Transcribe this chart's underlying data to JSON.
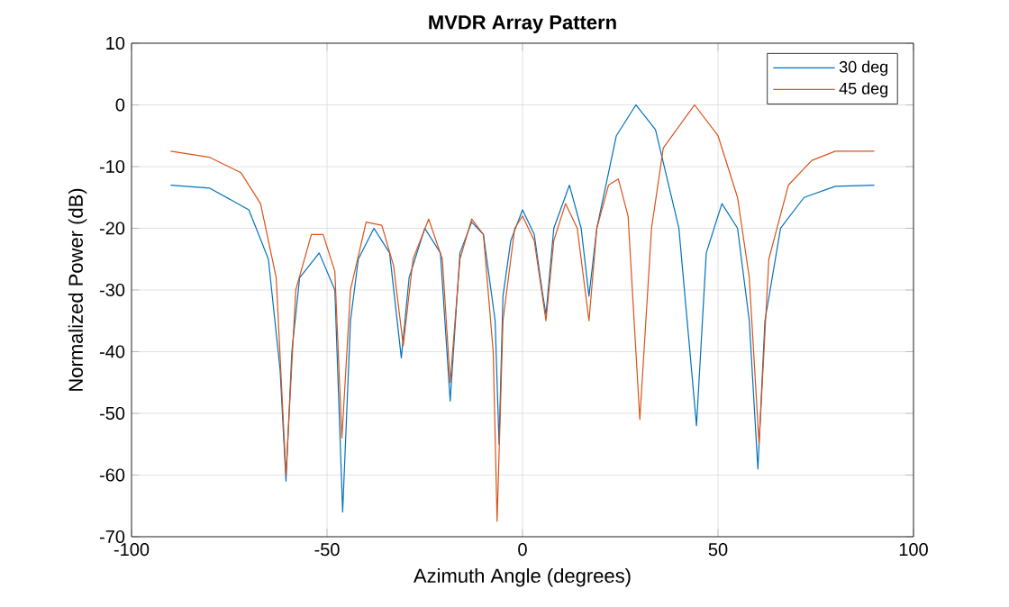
{
  "chart_data": {
    "type": "line",
    "title": "MVDR Array Pattern",
    "xlabel": "Azimuth Angle (degrees)",
    "ylabel": "Normalized Power (dB)",
    "xlim": [
      -100,
      100
    ],
    "ylim": [
      -70,
      10
    ],
    "xticks": [
      -100,
      -50,
      0,
      50,
      100
    ],
    "yticks": [
      -70,
      -60,
      -50,
      -40,
      -30,
      -20,
      -10,
      0,
      10
    ],
    "grid": true,
    "legend": "top right",
    "series": [
      {
        "name": "30 deg",
        "color": "#0072bd",
        "x": [
          -90,
          -80,
          -70,
          -65,
          -62,
          -60.5,
          -59,
          -57,
          -52,
          -48,
          -46,
          -44,
          -42,
          -38,
          -34,
          -31,
          -29,
          -25,
          -21,
          -18.5,
          -16,
          -13,
          -10,
          -7,
          -6,
          -5,
          -3,
          0,
          3,
          5,
          6,
          8,
          12,
          15,
          17,
          19,
          24,
          29,
          34,
          40,
          44.5,
          47,
          51,
          55,
          58,
          60.2,
          62,
          66,
          72,
          80,
          90
        ],
        "values": [
          -13,
          -13.5,
          -17,
          -25,
          -43,
          -61,
          -40,
          -28,
          -24,
          -30,
          -66,
          -35,
          -25,
          -20,
          -24,
          -41,
          -28,
          -20,
          -24,
          -48,
          -24,
          -19,
          -21,
          -35,
          -55,
          -31,
          -22,
          -17,
          -21,
          -30,
          -34,
          -20,
          -13,
          -20,
          -31,
          -20,
          -5,
          0,
          -4,
          -20,
          -52,
          -24,
          -16,
          -20,
          -35,
          -59,
          -35,
          -20,
          -15,
          -13.2,
          -13
        ]
      },
      {
        "name": "45 deg",
        "color": "#d95319",
        "x": [
          -90,
          -80,
          -72,
          -67,
          -63,
          -60.5,
          -58,
          -54,
          -51,
          -48,
          -46.2,
          -44,
          -40,
          -36,
          -33,
          -30.5,
          -28,
          -24,
          -20.5,
          -18.5,
          -16,
          -13,
          -10,
          -7.5,
          -6.5,
          -5,
          -2,
          0,
          3,
          6,
          8,
          11,
          14,
          17,
          19,
          22,
          24.5,
          27,
          30,
          33,
          36,
          44,
          50,
          55,
          58,
          60.5,
          63,
          68,
          74,
          80,
          90
        ],
        "values": [
          -7.5,
          -8.5,
          -11,
          -16,
          -28,
          -60,
          -30,
          -21,
          -21,
          -27,
          -54,
          -30,
          -19,
          -19.5,
          -26,
          -39,
          -25,
          -18.5,
          -25,
          -45,
          -25,
          -18.5,
          -21,
          -40,
          -67.5,
          -35,
          -20,
          -18,
          -22,
          -35,
          -22,
          -16,
          -20,
          -35,
          -20,
          -13,
          -12,
          -18,
          -51,
          -20,
          -7,
          0,
          -5,
          -15,
          -28,
          -55,
          -25,
          -13,
          -9,
          -7.5,
          -7.5
        ]
      }
    ]
  }
}
